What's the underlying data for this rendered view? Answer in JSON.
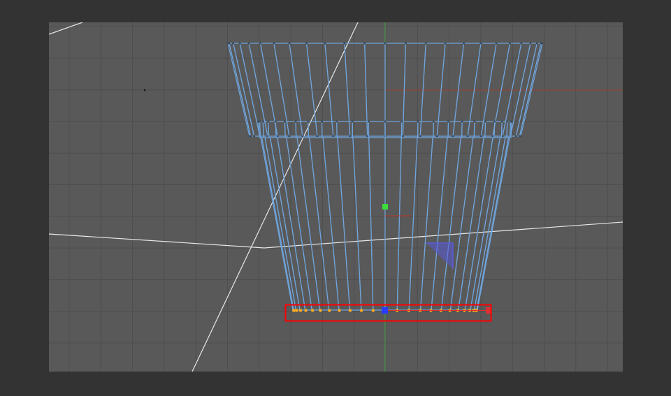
{
  "viewport": {
    "background": "#595959",
    "frame_background": "#333333",
    "grid_color": "#4e4e4e",
    "wire_color": "#6fa5dd",
    "point_color": "#f5a623",
    "selected_point_color": "#2a3cff",
    "selection_box_color": "#ff0000",
    "axis_x_color": "#c0392b",
    "axis_y_color": "#3ddc3d",
    "guide_line_color": "#e8e8e8",
    "gizmo_color": "#5a5ad8"
  },
  "object": {
    "type": "cup-wireframe",
    "segments": 48,
    "selected_edge": "bottom-ring"
  },
  "icons": [
    "move-gizmo",
    "axis-handle-y",
    "axis-handle-x"
  ]
}
